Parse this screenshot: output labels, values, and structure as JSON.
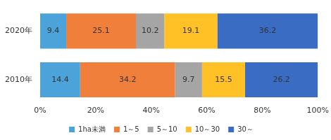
{
  "chart_data": {
    "type": "bar",
    "orientation": "horizontal",
    "stacked": true,
    "data_labels": true,
    "grid": false,
    "legend": "bottom",
    "categories": [
      "2020年",
      "2010年"
    ],
    "series": [
      {
        "name": "1ha未満",
        "color": "#4ba3d9",
        "values": [
          9.4,
          14.4
        ]
      },
      {
        "name": "1～5",
        "color": "#f07f3c",
        "values": [
          25.1,
          34.2
        ]
      },
      {
        "name": "5～10",
        "color": "#a5a5a5",
        "values": [
          10.2,
          9.7
        ]
      },
      {
        "name": "10～30",
        "color": "#ffc125",
        "values": [
          19.1,
          15.5
        ]
      },
      {
        "name": "30～",
        "color": "#3a6cc4",
        "values": [
          36.2,
          26.2
        ]
      }
    ],
    "xlim": [
      0,
      100
    ],
    "xticks": [
      {
        "value": 0,
        "label": "0%"
      },
      {
        "value": 20,
        "label": "20%"
      },
      {
        "value": 40,
        "label": "40%"
      },
      {
        "value": 60,
        "label": "60%"
      },
      {
        "value": 80,
        "label": "80%"
      },
      {
        "value": 100,
        "label": "100%"
      }
    ]
  }
}
